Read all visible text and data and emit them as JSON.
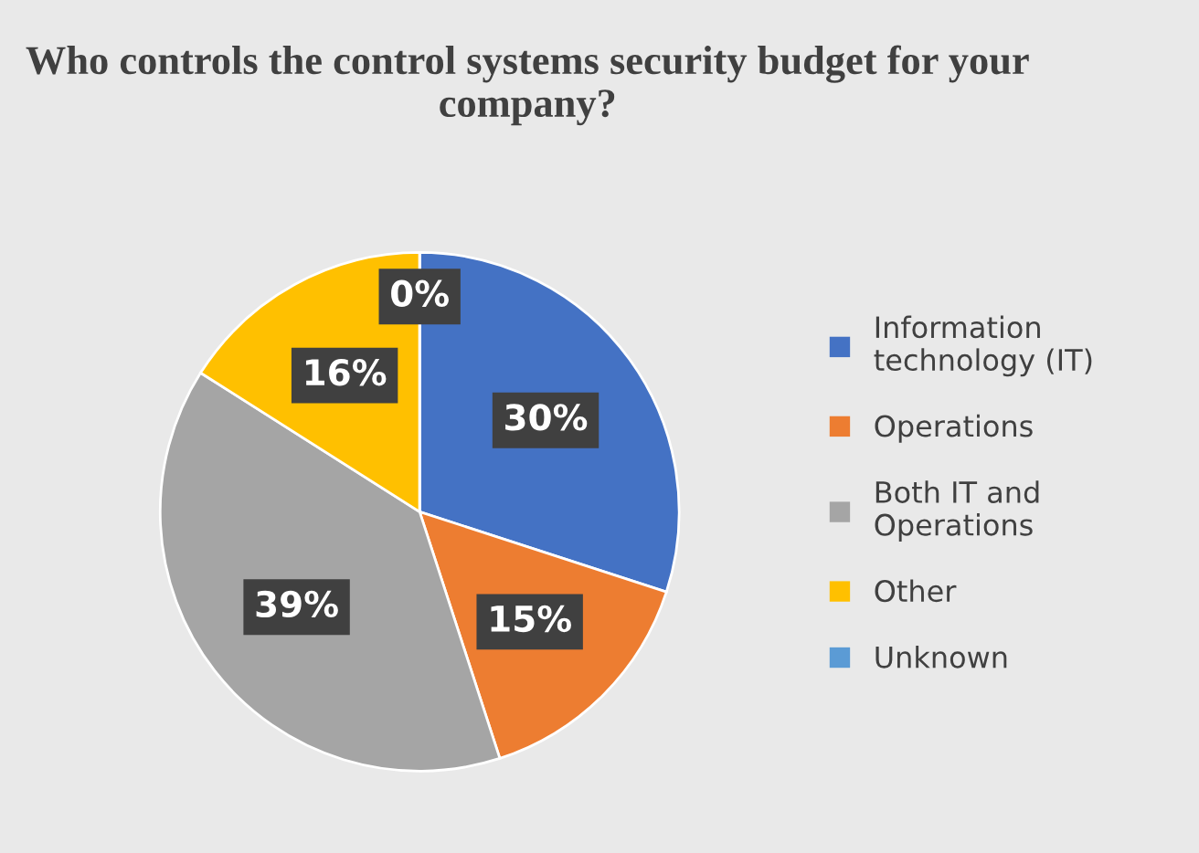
{
  "chart_data": {
    "type": "pie",
    "title": "Who controls the control systems security budget for your company?",
    "categories": [
      "Information technology (IT)",
      "Operations",
      "Both IT and Operations",
      "Other",
      "Unknown"
    ],
    "values": [
      30,
      15,
      39,
      16,
      0
    ],
    "colors": [
      "#4472c4",
      "#ed7d31",
      "#a5a5a5",
      "#ffc000",
      "#5b9bd5"
    ],
    "value_labels": [
      "30%",
      "15%",
      "39%",
      "16%",
      "0%"
    ],
    "legend": "right"
  }
}
